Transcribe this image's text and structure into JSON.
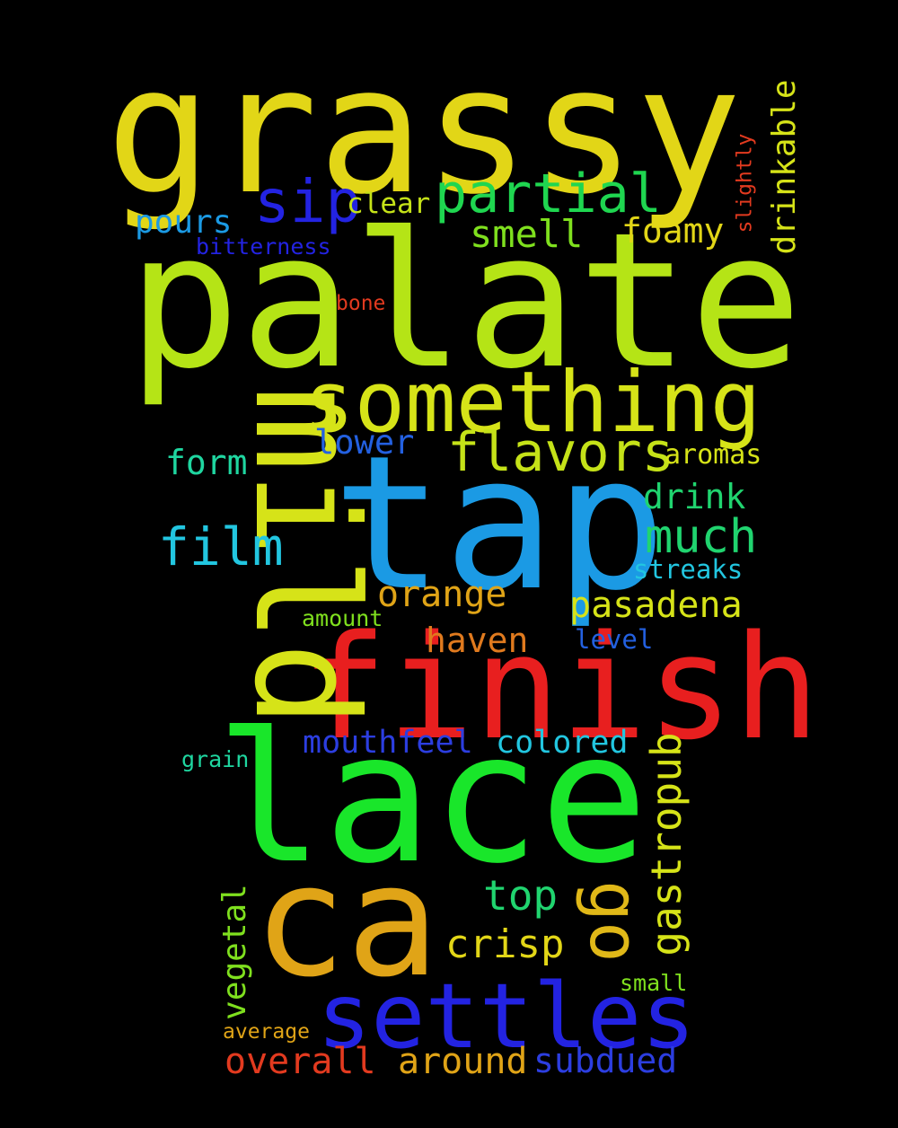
{
  "background_color": "#000000",
  "words": [
    {
      "text": "grassy",
      "color": "#e2d617",
      "rotated": false
    },
    {
      "text": "palate",
      "color": "#b5e416",
      "rotated": false
    },
    {
      "text": "tap",
      "color": "#1b9ae4",
      "rotated": false
    },
    {
      "text": "finish",
      "color": "#e81f1f",
      "rotated": false
    },
    {
      "text": "lace",
      "color": "#19e62a",
      "rotated": false
    },
    {
      "text": "mild",
      "color": "#d6e318",
      "rotated": true
    },
    {
      "text": "ca",
      "color": "#e0a417",
      "rotated": false
    },
    {
      "text": "something",
      "color": "#d6e318",
      "rotated": false
    },
    {
      "text": "settles",
      "color": "#2323e2",
      "rotated": false
    },
    {
      "text": "partial",
      "color": "#1fd650",
      "rotated": false
    },
    {
      "text": "flavors",
      "color": "#c5e218",
      "rotated": false
    },
    {
      "text": "sip",
      "color": "#2323e2",
      "rotated": false
    },
    {
      "text": "film",
      "color": "#22c6e0",
      "rotated": false
    },
    {
      "text": "much",
      "color": "#20d46f",
      "rotated": false
    },
    {
      "text": "gastropub",
      "color": "#d6e318",
      "rotated": true
    },
    {
      "text": "go",
      "color": "#e0b818",
      "rotated": true
    },
    {
      "text": "orange",
      "color": "#e0a417",
      "rotated": false
    },
    {
      "text": "pasadena",
      "color": "#d6e318",
      "rotated": false
    },
    {
      "text": "haven",
      "color": "#e07a1e",
      "rotated": false
    },
    {
      "text": "top",
      "color": "#20d46f",
      "rotated": false
    },
    {
      "text": "crisp",
      "color": "#e2d617",
      "rotated": false
    },
    {
      "text": "overall",
      "color": "#e23a1f",
      "rotated": false
    },
    {
      "text": "around",
      "color": "#e0a417",
      "rotated": false
    },
    {
      "text": "subdued",
      "color": "#2c3ee0",
      "rotated": false
    },
    {
      "text": "mouthfeel",
      "color": "#2c3ee0",
      "rotated": false
    },
    {
      "text": "colored",
      "color": "#22c6e0",
      "rotated": false
    },
    {
      "text": "smell",
      "color": "#7fe01e",
      "rotated": false
    },
    {
      "text": "foamy",
      "color": "#e2d617",
      "rotated": false
    },
    {
      "text": "drinkable",
      "color": "#d6e318",
      "rotated": true
    },
    {
      "text": "drink",
      "color": "#20d46f",
      "rotated": false
    },
    {
      "text": "form",
      "color": "#1fd6a0",
      "rotated": false
    },
    {
      "text": "lower",
      "color": "#2360e0",
      "rotated": false
    },
    {
      "text": "pours",
      "color": "#1b9ae4",
      "rotated": false
    },
    {
      "text": "vegetal",
      "color": "#7fe01e",
      "rotated": true
    },
    {
      "text": "clear",
      "color": "#c5e218",
      "rotated": false
    },
    {
      "text": "aromas",
      "color": "#d6e318",
      "rotated": false
    },
    {
      "text": "streaks",
      "color": "#22c6e0",
      "rotated": false
    },
    {
      "text": "level",
      "color": "#2360e0",
      "rotated": false
    },
    {
      "text": "amount",
      "color": "#7fe01e",
      "rotated": false
    },
    {
      "text": "bitterness",
      "color": "#2323e2",
      "rotated": false
    },
    {
      "text": "slightly",
      "color": "#e23a1f",
      "rotated": true
    },
    {
      "text": "bone",
      "color": "#e23a1f",
      "rotated": false
    },
    {
      "text": "grain",
      "color": "#1fd6a0",
      "rotated": false
    },
    {
      "text": "small",
      "color": "#7fe01e",
      "rotated": false
    },
    {
      "text": "average",
      "color": "#e0a417",
      "rotated": false
    }
  ]
}
